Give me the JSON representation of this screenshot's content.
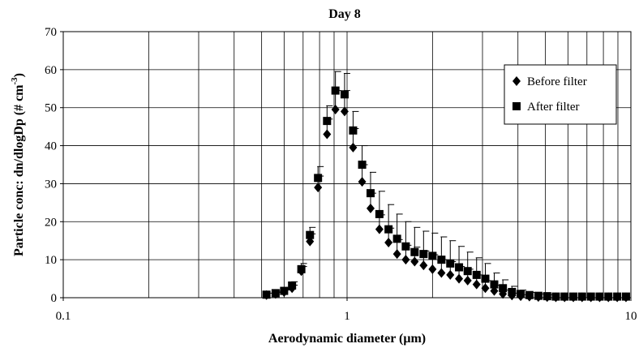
{
  "chart_data": {
    "type": "scatter",
    "title": "Day 8",
    "xlabel": "Aerodynamic diameter (μm)",
    "ylabel": "Particle conc: dn/dlogDp (# cm",
    "ylabel_sup": "-3",
    "ylabel_end": ")",
    "x_scale": "log",
    "xlim": [
      0.1,
      10
    ],
    "ylim": [
      0,
      70
    ],
    "x_ticks": [
      0.1,
      1,
      10
    ],
    "x_tick_labels": [
      "0.1",
      "1",
      "10"
    ],
    "y_ticks": [
      0,
      10,
      20,
      30,
      40,
      50,
      60,
      70
    ],
    "y_tick_labels": [
      "0",
      "10",
      "20",
      "30",
      "40",
      "50",
      "60",
      "70"
    ],
    "grid": "on",
    "legend_position": "right",
    "x": [
      0.52,
      0.56,
      0.6,
      0.64,
      0.69,
      0.74,
      0.79,
      0.85,
      0.91,
      0.98,
      1.05,
      1.13,
      1.21,
      1.3,
      1.4,
      1.5,
      1.61,
      1.73,
      1.86,
      2.0,
      2.15,
      2.31,
      2.48,
      2.66,
      2.86,
      3.07,
      3.3,
      3.54,
      3.81,
      4.09,
      4.39,
      4.72,
      5.07,
      5.44,
      5.84,
      6.27,
      6.73,
      7.23,
      7.76,
      8.33,
      8.95,
      9.61
    ],
    "series": [
      {
        "name": "Before filter",
        "marker": "diamond",
        "color": "#000000",
        "values": [
          0.7,
          1.0,
          1.5,
          2.5,
          7.0,
          14.8,
          29.0,
          43.0,
          49.5,
          49.0,
          39.5,
          30.5,
          23.5,
          18.0,
          14.5,
          11.5,
          10.0,
          9.5,
          8.5,
          7.5,
          6.5,
          6.0,
          5.0,
          4.5,
          3.5,
          2.5,
          1.8,
          1.0,
          0.6,
          0.4,
          0.3,
          0.2,
          0.15,
          0.1,
          0.1,
          0.1,
          0.1,
          0.1,
          0.1,
          0.1,
          0.1,
          0.1
        ],
        "errors": [
          0.3,
          0.4,
          0.5,
          0.8,
          1.2,
          2.0,
          3.0,
          4.0,
          5.0,
          5.5,
          5.0,
          4.5,
          4.0,
          3.8,
          3.8,
          3.8,
          3.8,
          3.8,
          3.8,
          3.8,
          3.5,
          3.5,
          3.2,
          3.0,
          2.5,
          2.0,
          1.5,
          1.0,
          0.6,
          0.4,
          0.3,
          0.2,
          0.2,
          0.1,
          0.1,
          0.1,
          0.1,
          0.1,
          0.1,
          0.1,
          0.1,
          0.1
        ]
      },
      {
        "name": "After filter",
        "marker": "square",
        "color": "#000000",
        "values": [
          0.8,
          1.2,
          1.8,
          3.2,
          7.5,
          16.5,
          31.5,
          46.5,
          54.5,
          53.5,
          44.0,
          35.0,
          27.5,
          22.0,
          18.0,
          15.5,
          13.5,
          12.0,
          11.5,
          11.0,
          10.0,
          9.0,
          8.0,
          7.0,
          6.0,
          5.0,
          3.5,
          2.5,
          1.5,
          1.0,
          0.7,
          0.5,
          0.4,
          0.3,
          0.3,
          0.3,
          0.3,
          0.3,
          0.3,
          0.3,
          0.3,
          0.3
        ],
        "errors": [
          0.4,
          0.5,
          0.6,
          1.0,
          1.5,
          2.0,
          3.0,
          4.0,
          5.0,
          5.5,
          5.0,
          5.0,
          5.5,
          6.0,
          6.5,
          6.5,
          6.5,
          6.5,
          6.0,
          6.0,
          6.0,
          6.0,
          5.5,
          5.0,
          4.5,
          4.0,
          3.0,
          2.2,
          1.5,
          1.0,
          0.7,
          0.5,
          0.4,
          0.3,
          0.3,
          0.3,
          0.3,
          0.3,
          0.3,
          0.3,
          0.3,
          0.3
        ]
      }
    ]
  }
}
